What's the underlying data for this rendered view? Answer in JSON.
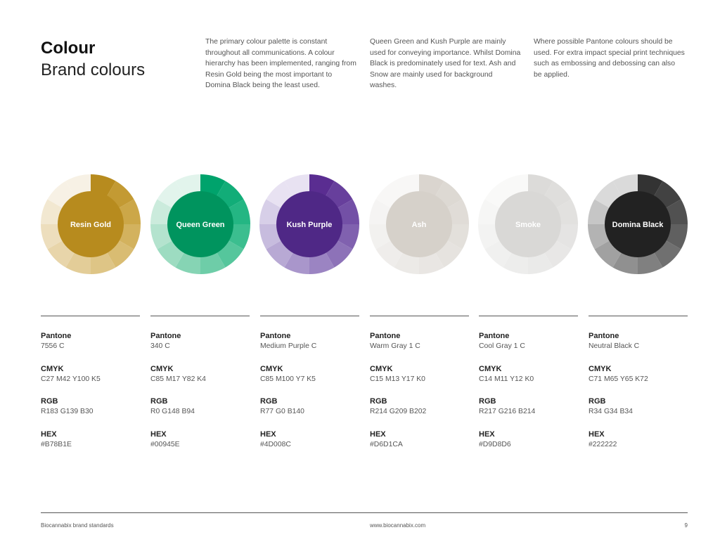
{
  "header": {
    "title": "Colour",
    "subtitle": "Brand colours"
  },
  "intro": [
    "The primary colour palette is constant throughout all communications. A colour hierarchy has been implemented, ranging from Resin Gold being the most important to Domina Black being the least used.",
    "Queen Green and Kush Purple are mainly used for conveying importance. Whilst Domina Black is predominately used for text. Ash and Snow are mainly used for background washes.",
    "Where possible Pantone colours should be used. For extra impact special print techniques such as embossing and debossing can also be applied."
  ],
  "spec_labels": {
    "pantone": "Pantone",
    "cmyk": "CMYK",
    "rgb": "RGB",
    "hex": "HEX"
  },
  "colours": [
    {
      "name": "Resin Gold",
      "pantone": "7556 C",
      "cmyk": "C27 M42 Y100 K5",
      "rgb": "R183 G139 B30",
      "hex": "#B78B1E",
      "center_color": "#B78B1E",
      "label_color": "#ffffff",
      "tint_colors": [
        "#B78B1E",
        "#C39A33",
        "#CCA748",
        "#D3B25E",
        "#D9BC72",
        "#DEC586",
        "#E3CD98",
        "#E8D5AA",
        "#EDDEBD",
        "#F2E8D1",
        "#F7F1E5"
      ]
    },
    {
      "name": "Queen Green",
      "pantone": "340 C",
      "cmyk": "C85 M17 Y82 K4",
      "rgb": "R0 G148 B94",
      "hex": "#00945E",
      "center_color": "#00945E",
      "label_color": "#ffffff",
      "tint_colors": [
        "#00A36C",
        "#12AD78",
        "#24B683",
        "#3BBE8F",
        "#55C69C",
        "#6ECDA8",
        "#86D4B4",
        "#9DDCC1",
        "#B4E3CE",
        "#CBEBDC",
        "#E2F4EC"
      ]
    },
    {
      "name": "Kush Purple",
      "pantone": "Medium Purple C",
      "cmyk": "C85 M100 Y7 K5",
      "rgb": "R77 G0 B140",
      "hex": "#4D008C",
      "center_color": "#4F2886",
      "label_color": "#ffffff",
      "tint_colors": [
        "#5A2D91",
        "#673F9C",
        "#7350A6",
        "#8061AF",
        "#8D72B8",
        "#9B84C2",
        "#A996CB",
        "#B8A9D4",
        "#C7BCDE",
        "#D7CFE8",
        "#E8E2F2"
      ]
    },
    {
      "name": "Ash",
      "pantone": "Warm Gray 1 C",
      "cmyk": "C15 M13 Y17 K0",
      "rgb": "R214 G209 B202",
      "hex": "#D6D1CA",
      "center_color": "#D6D1CA",
      "label_color": "#ffffff",
      "tint_colors": [
        "#DAD5CF",
        "#DDD9D3",
        "#E0DCD7",
        "#E3E0DB",
        "#E6E3DF",
        "#E9E6E3",
        "#ECEAE7",
        "#EFEDEB",
        "#F2F1EF",
        "#F5F4F3",
        "#F8F7F6"
      ]
    },
    {
      "name": "Smoke",
      "pantone": "Cool Gray 1 C",
      "cmyk": "C14 M11 Y12 K0",
      "rgb": "R217 G216 B214",
      "hex": "#D9D8D6",
      "center_color": "#D9D8D6",
      "label_color": "#ffffff",
      "tint_colors": [
        "#DCDBD9",
        "#DFDEDC",
        "#E2E1DF",
        "#E5E4E3",
        "#E8E7E6",
        "#EAEAE9",
        "#EDEDEC",
        "#F0F0EF",
        "#F3F3F2",
        "#F6F6F5",
        "#F9F9F8"
      ]
    },
    {
      "name": "Domina Black",
      "pantone": "Neutral Black C",
      "cmyk": "C71 M65 Y65 K72",
      "rgb": "R34 G34 B34",
      "hex": "#222222",
      "center_color": "#222222",
      "label_color": "#ffffff",
      "tint_colors": [
        "#333333",
        "#424242",
        "#515151",
        "#606060",
        "#707070",
        "#808080",
        "#909090",
        "#A1A1A1",
        "#B3B3B3",
        "#C6C6C6",
        "#DADADA"
      ]
    }
  ],
  "footer": {
    "left": "Biocannabix brand standards",
    "center": "www.biocannabix.com",
    "page": "9"
  }
}
